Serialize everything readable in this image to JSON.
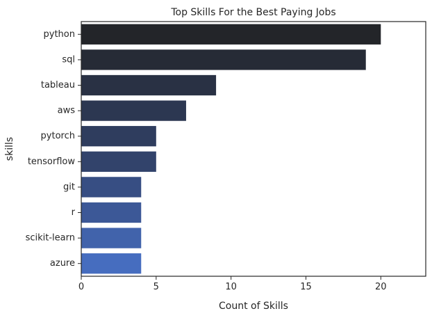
{
  "chart_data": {
    "type": "bar",
    "orientation": "horizontal",
    "title": "Top Skills For the Best Paying Jobs",
    "xlabel": "Count of Skills",
    "ylabel": "skills",
    "categories": [
      "python",
      "sql",
      "tableau",
      "aws",
      "pytorch",
      "tensorflow",
      "git",
      "r",
      "scikit-learn",
      "azure"
    ],
    "values": [
      20,
      19,
      9,
      7,
      5,
      5,
      4,
      4,
      4,
      4
    ],
    "xlim": [
      0,
      23
    ],
    "xticks": [
      0,
      5,
      10,
      15,
      20
    ],
    "grid": false,
    "colors": [
      "#232529",
      "#262b36",
      "#293144",
      "#2c3751",
      "#2f3d5e",
      "#32436b",
      "#374e83",
      "#3c5897",
      "#4163ab",
      "#466dbf"
    ]
  }
}
